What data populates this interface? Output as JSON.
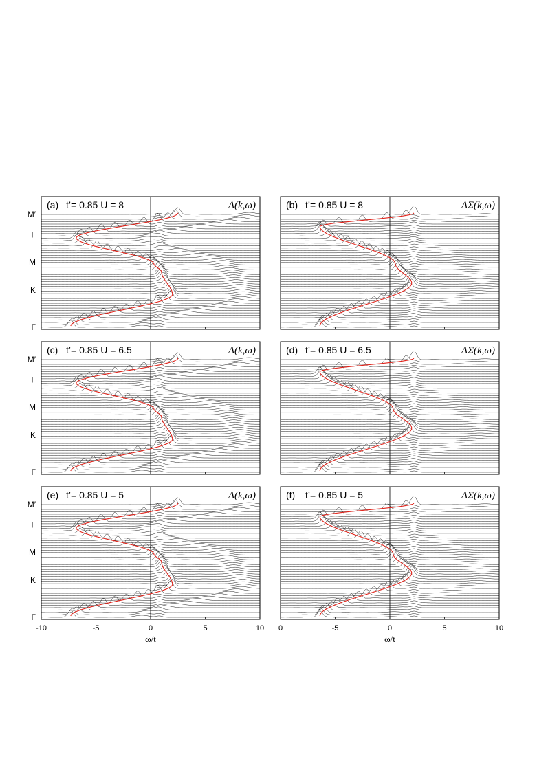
{
  "chart_data": [
    {
      "panel": "(a)",
      "type": "line",
      "title": "t’= 0.85  U = 8",
      "ylabel": "A(k,ω)",
      "xlim": [
        -10,
        10
      ],
      "xticks": [
        "-10",
        "-5",
        "0",
        "5",
        "10"
      ],
      "kticks": [
        "Γ",
        "K",
        "M",
        "Γ",
        "M′"
      ],
      "red_curve": {
        "left": -7.3,
        "right": 2.0,
        "mid": 1.0,
        "peak_left": -7.2,
        "peak_right": 5.0
      }
    },
    {
      "panel": "(b)",
      "type": "line",
      "title": "t’= 0.85  U = 8",
      "ylabel": "AΣ(k,ω)",
      "xlim": [
        -10,
        10
      ],
      "xticks": [
        "0",
        "-5",
        "0",
        "5",
        "10"
      ],
      "kticks": [
        "Γ",
        "K",
        "M",
        "Γ",
        "M′"
      ],
      "red_curve": {
        "left": -6.4,
        "right": 2.0,
        "mid": 0.5,
        "peak_left": -5.0,
        "peak_right": 3.2
      }
    },
    {
      "panel": "(c)",
      "type": "line",
      "title": "t’= 0.85  U = 6.5",
      "ylabel": "A(k,ω)",
      "xlim": [
        -10,
        10
      ],
      "xticks": [
        "-10",
        "-5",
        "0",
        "5",
        "10"
      ],
      "kticks": [
        "Γ",
        "K",
        "M",
        "Γ",
        "M′"
      ],
      "red_curve": {
        "left": -7.3,
        "right": 2.0,
        "mid": 1.0,
        "peak_left": -7.0,
        "peak_right": 4.0
      }
    },
    {
      "panel": "(d)",
      "type": "line",
      "title": "t’= 0.85  U = 6.5",
      "ylabel": "AΣ(k,ω)",
      "xlim": [
        -10,
        10
      ],
      "xticks": [
        "0",
        "-5",
        "0",
        "5",
        "10"
      ],
      "kticks": [
        "Γ",
        "K",
        "M",
        "Γ",
        "M′"
      ],
      "red_curve": {
        "left": -6.4,
        "right": 2.0,
        "mid": 0.3,
        "peak_left": -4.5,
        "peak_right": 2.5
      }
    },
    {
      "panel": "(e)",
      "type": "line",
      "title": "t’= 0.85  U = 5",
      "ylabel": "A(k,ω)",
      "xlim": [
        -10,
        10
      ],
      "xticks": [
        "-10",
        "-5",
        "0",
        "5",
        "10"
      ],
      "kticks": [
        "Γ",
        "K",
        "M",
        "Γ",
        "M′"
      ],
      "red_curve": {
        "left": -7.3,
        "right": 2.0,
        "mid": 1.0,
        "peak_left": -7.0,
        "peak_right": 3.5
      }
    },
    {
      "panel": "(f)",
      "type": "line",
      "title": "t’= 0.85  U = 5",
      "ylabel": "AΣ(k,ω)",
      "xlim": [
        -10,
        10
      ],
      "xticks": [
        "0",
        "-5",
        "0",
        "5",
        "10"
      ],
      "kticks": [
        "Γ",
        "K",
        "M",
        "Γ",
        "M′"
      ],
      "red_curve": {
        "left": -6.4,
        "right": 2.0,
        "mid": 0.3,
        "peak_left": -4.5,
        "peak_right": 2.2
      }
    }
  ],
  "xlabel_left": "ω/t",
  "xlabel_right": "ω/t",
  "colors": {
    "spectra": "#000000",
    "dispersion": "#e0231a",
    "frame": "#000000"
  }
}
